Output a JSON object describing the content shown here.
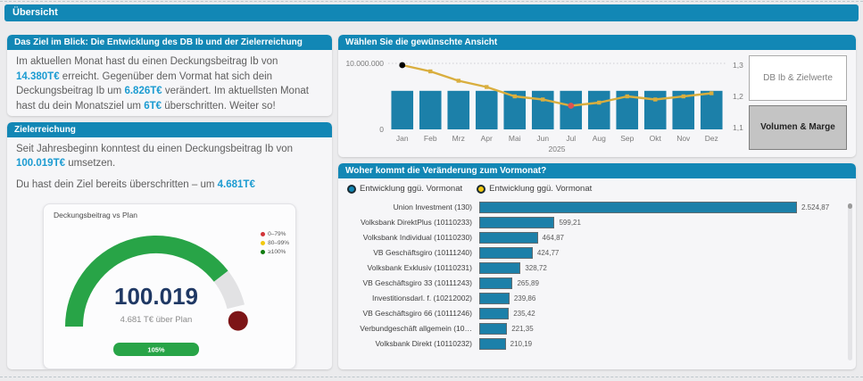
{
  "page": {
    "title": "Übersicht"
  },
  "colors": {
    "accent_teal": "#1287B5",
    "bar_fill": "#1C80A9",
    "number_highlight": "#1B9BD1",
    "line_gold": "#D9AE3E",
    "gauge_green": "#28A447",
    "gauge_navy": "#1F3864",
    "pointer_dark_red": "#7D1517"
  },
  "goal_card": {
    "title": "Das Ziel im Blick: Die Entwicklung des DB Ib und der Zielerreichung",
    "segments": [
      {
        "t": "Im aktuellen Monat hast du einen Deckungsbeitrag Ib von "
      },
      {
        "t": "14.380T€",
        "b": true
      },
      {
        "t": " erreicht. Gegenüber dem Vormat hat sich dein Deckungsbeitrag Ib um "
      },
      {
        "t": "6.826T€",
        "b": true
      },
      {
        "t": " verändert. Im aktuellsten Monat hast du dein Monatsziel um "
      },
      {
        "t": "6T€",
        "b": true
      },
      {
        "t": " überschritten. Weiter so!"
      }
    ]
  },
  "target_card": {
    "title": "Zielerreichung",
    "p1": [
      {
        "t": "Seit Jahresbeginn konntest du einen Deckungsbeitrag Ib von "
      },
      {
        "t": "100.019T€",
        "b": true
      },
      {
        "t": " umsetzen."
      }
    ],
    "p2": [
      {
        "t": "Du hast dein Ziel bereits überschritten – um "
      },
      {
        "t": "4.681T€",
        "b": true
      }
    ]
  },
  "view_card": {
    "title": "Wählen Sie die gewünschte Ansicht",
    "buttons": [
      {
        "label": "DB Ib & Zielwerte",
        "active": false
      },
      {
        "label": "Volumen & Marge",
        "active": true
      }
    ]
  },
  "change_card": {
    "title": "Woher kommt die Veränderung zum Vormonat?",
    "legend": [
      {
        "label": "Entwicklung ggü. Vormonat",
        "color": "#1287B5"
      },
      {
        "label": "Entwicklung ggü. Vormonat",
        "color": "#F2C80F"
      }
    ]
  },
  "chart_data": [
    {
      "id": "monthly_combo",
      "type": "combo",
      "categories": [
        "Jan",
        "Feb",
        "Mrz",
        "Apr",
        "Mai",
        "Jun",
        "Jul",
        "Aug",
        "Sep",
        "Okt",
        "Nov",
        "Dez"
      ],
      "x_group_label": "2025",
      "bar_series": {
        "color": "#1C80A9",
        "values": [
          6000000,
          6000000,
          6000000,
          6000000,
          6000000,
          6000000,
          6000000,
          6000000,
          6000000,
          6000000,
          6000000,
          6000000
        ]
      },
      "line_series": {
        "color": "#D9AE3E",
        "values": [
          1.3,
          1.28,
          1.25,
          1.23,
          1.2,
          1.19,
          1.17,
          1.18,
          1.2,
          1.19,
          1.2,
          1.21
        ],
        "point_highlights": {
          "0": "#000000",
          "6": "#E05252"
        }
      },
      "left_axis": {
        "min": 0,
        "max": 10000000,
        "ticks": [
          "0",
          "10.000.000"
        ]
      },
      "right_axis": {
        "min": 1.1,
        "max": 1.3,
        "tick_values": [
          1.1,
          1.2,
          1.3
        ],
        "ticks": [
          "1,1",
          "1,2",
          "1,3"
        ]
      },
      "grid": "dotted-top"
    },
    {
      "id": "goal_gauge",
      "type": "gauge",
      "title": "Deckungsbeitrag vs Plan",
      "value_display": "100.019",
      "sub_label": "4.681 T€ über Plan",
      "badge": "105%",
      "fraction_filled": 0.79,
      "arc_color": "#28A447",
      "track_color": "#E2E2E4",
      "pointer_color": "#7D1517",
      "legend": [
        {
          "label": "0–79%",
          "color": "#D13438"
        },
        {
          "label": "80–99%",
          "color": "#F2C80F"
        },
        {
          "label": "≥100%",
          "color": "#107C10"
        }
      ]
    },
    {
      "id": "change_bars",
      "type": "bar",
      "orientation": "horizontal",
      "bar_color": "#1C80A9",
      "categories": [
        "Union Investment (130)",
        "Volksbank DirektPlus (10110233)",
        "Volksbank Individual (10110230)",
        "VB Geschäftsgiro (10111240)",
        "Volksbank Exklusiv (10110231)",
        "VB Geschäftsgiro 33 (10111243)",
        "Investitionsdarl. f. (10212002)",
        "VB Geschäftsgiro 66 (10111246)",
        "Verbundgeschäft allgemein (10…",
        "Volksbank Direkt (10110232)"
      ],
      "values": [
        2524.87,
        599.21,
        464.87,
        424.77,
        328.72,
        265.89,
        239.86,
        235.42,
        221.35,
        210.19
      ],
      "value_labels": [
        "2.524,87",
        "599,21",
        "464,87",
        "424,77",
        "328,72",
        "265,89",
        "239,86",
        "235,42",
        "221,35",
        "210,19"
      ]
    }
  ]
}
